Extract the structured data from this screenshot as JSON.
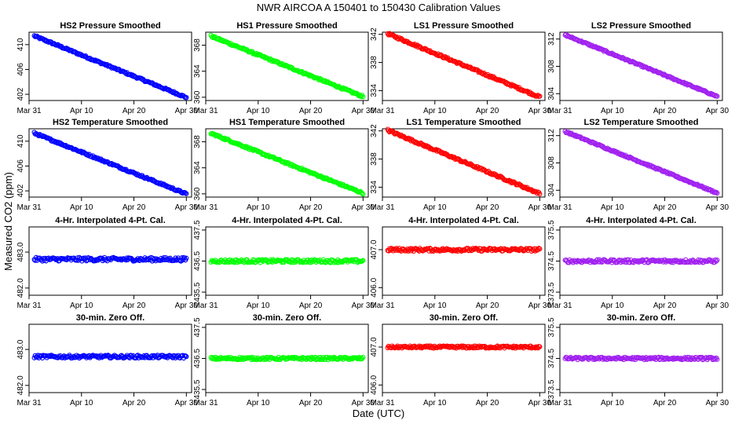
{
  "figure": {
    "title": "NWR   AIRCOA A   150401 to 150430   Calibration Values",
    "ylabel": "Measured CO2 (ppm)",
    "xlabel": "Date (UTC)"
  },
  "colors": {
    "HS2": "#0000ff",
    "HS1": "#00ff00",
    "LS1": "#ff0000",
    "LS2": "#a020f0"
  },
  "chart_data": [
    {
      "type": "scatter",
      "title": "HS2 Pressure Smoothed",
      "color_key": "HS2",
      "xlim": [
        "Mar 31",
        "May 1"
      ],
      "ylim": [
        401,
        412
      ],
      "x_ticks": [
        "Mar 31",
        "Apr 10",
        "Apr 20",
        "Apr 30"
      ],
      "y_ticks": [
        402,
        406,
        410
      ],
      "trend": {
        "x": [
          "Apr 1",
          "Apr 30"
        ],
        "y": [
          411.4,
          401.5
        ]
      },
      "noise": 0.15
    },
    {
      "type": "scatter",
      "title": "HS1 Pressure Smoothed",
      "color_key": "HS1",
      "xlim": [
        "Mar 31",
        "May 1"
      ],
      "ylim": [
        359.5,
        370
      ],
      "x_ticks": [
        "Mar 31",
        "Apr 10",
        "Apr 20",
        "Apr 30"
      ],
      "y_ticks": [
        360,
        364,
        368
      ],
      "trend": {
        "x": [
          "Apr 1",
          "Apr 30"
        ],
        "y": [
          369.4,
          360.1
        ]
      },
      "noise": 0.15
    },
    {
      "type": "scatter",
      "title": "LS1 Pressure Smoothed",
      "color_key": "LS1",
      "xlim": [
        "Mar 31",
        "May 1"
      ],
      "ylim": [
        332.6,
        342.3
      ],
      "x_ticks": [
        "Mar 31",
        "Apr 10",
        "Apr 20",
        "Apr 30"
      ],
      "y_ticks": [
        334,
        338,
        342
      ],
      "trend": {
        "x": [
          "Apr 1",
          "Apr 30"
        ],
        "y": [
          342.1,
          333.1
        ]
      },
      "noise": 0.15
    },
    {
      "type": "scatter",
      "title": "LS2 Pressure Smoothed",
      "color_key": "LS2",
      "xlim": [
        "Mar 31",
        "May 1"
      ],
      "ylim": [
        303,
        313
      ],
      "x_ticks": [
        "Mar 31",
        "Apr 10",
        "Apr 20",
        "Apr 30"
      ],
      "y_ticks": [
        304,
        308,
        312
      ],
      "trend": {
        "x": [
          "Apr 1",
          "Apr 30"
        ],
        "y": [
          312.6,
          303.6
        ]
      },
      "noise": 0.12
    },
    {
      "type": "scatter",
      "title": "HS2 Temperature Smoothed",
      "color_key": "HS2",
      "xlim": [
        "Mar 31",
        "May 1"
      ],
      "ylim": [
        401,
        412
      ],
      "x_ticks": [
        "Mar 31",
        "Apr 10",
        "Apr 20",
        "Apr 30"
      ],
      "y_ticks": [
        402,
        406,
        410
      ],
      "trend": {
        "x": [
          "Apr 1",
          "Apr 30"
        ],
        "y": [
          411.3,
          401.5
        ]
      },
      "noise": 0.15
    },
    {
      "type": "scatter",
      "title": "HS1 Temperature Smoothed",
      "color_key": "HS1",
      "xlim": [
        "Mar 31",
        "May 1"
      ],
      "ylim": [
        359.5,
        370
      ],
      "x_ticks": [
        "Mar 31",
        "Apr 10",
        "Apr 20",
        "Apr 30"
      ],
      "y_ticks": [
        360,
        364,
        368
      ],
      "trend": {
        "x": [
          "Apr 1",
          "Apr 30"
        ],
        "y": [
          369.3,
          360.1
        ]
      },
      "noise": 0.15
    },
    {
      "type": "scatter",
      "title": "LS1 Temperature Smoothed",
      "color_key": "LS1",
      "xlim": [
        "Mar 31",
        "May 1"
      ],
      "ylim": [
        332.6,
        342.3
      ],
      "x_ticks": [
        "Mar 31",
        "Apr 10",
        "Apr 20",
        "Apr 30"
      ],
      "y_ticks": [
        334,
        338,
        342
      ],
      "trend": {
        "x": [
          "Apr 1",
          "Apr 30"
        ],
        "y": [
          342.1,
          333.1
        ]
      },
      "noise": 0.15
    },
    {
      "type": "scatter",
      "title": "LS2 Temperature Smoothed",
      "color_key": "LS2",
      "xlim": [
        "Mar 31",
        "May 1"
      ],
      "ylim": [
        303,
        313
      ],
      "x_ticks": [
        "Mar 31",
        "Apr 10",
        "Apr 20",
        "Apr 30"
      ],
      "y_ticks": [
        304,
        308,
        312
      ],
      "trend": {
        "x": [
          "Apr 1",
          "Apr 30"
        ],
        "y": [
          312.6,
          303.6
        ]
      },
      "noise": 0.12
    },
    {
      "type": "scatter",
      "title": "4-Hr. Interpolated 4-Pt. Cal.",
      "color_key": "HS2",
      "xlim": [
        "Mar 31",
        "May 1"
      ],
      "ylim": [
        481.8,
        483.7
      ],
      "x_ticks": [
        "Mar 31",
        "Apr 10",
        "Apr 20",
        "Apr 30"
      ],
      "y_ticks": [
        "482.0",
        "483.0"
      ],
      "trend": {
        "x": [
          "Apr 1",
          "Apr 30"
        ],
        "y": [
          482.8,
          482.8
        ]
      },
      "noise": 0.05
    },
    {
      "type": "scatter",
      "title": "4-Hr. Interpolated 4-Pt. Cal.",
      "color_key": "HS1",
      "xlim": [
        "Mar 31",
        "May 1"
      ],
      "ylim": [
        435.4,
        437.6
      ],
      "x_ticks": [
        "Mar 31",
        "Apr 10",
        "Apr 20",
        "Apr 30"
      ],
      "y_ticks": [
        "435.5",
        "436.5",
        "437.5"
      ],
      "trend": {
        "x": [
          "Apr 1",
          "Apr 30"
        ],
        "y": [
          436.5,
          436.5
        ]
      },
      "noise": 0.05
    },
    {
      "type": "scatter",
      "title": "4-Hr. Interpolated 4-Pt. Cal.",
      "color_key": "LS1",
      "xlim": [
        "Mar 31",
        "May 1"
      ],
      "ylim": [
        405.8,
        407.6
      ],
      "x_ticks": [
        "Mar 31",
        "Apr 10",
        "Apr 20",
        "Apr 30"
      ],
      "y_ticks": [
        "406.0",
        "407.0"
      ],
      "trend": {
        "x": [
          "Apr 1",
          "Apr 30"
        ],
        "y": [
          407.0,
          407.0
        ]
      },
      "noise": 0.04
    },
    {
      "type": "scatter",
      "title": "4-Hr. Interpolated 4-Pt. Cal.",
      "color_key": "LS2",
      "xlim": [
        "Mar 31",
        "May 1"
      ],
      "ylim": [
        373.4,
        375.6
      ],
      "x_ticks": [
        "Mar 31",
        "Apr 10",
        "Apr 20",
        "Apr 30"
      ],
      "y_ticks": [
        "373.5",
        "374.5",
        "375.5"
      ],
      "trend": {
        "x": [
          "Apr 1",
          "Apr 30"
        ],
        "y": [
          374.5,
          374.5
        ]
      },
      "noise": 0.05
    },
    {
      "type": "scatter",
      "title": "30-min. Zero Off.",
      "color_key": "HS2",
      "xlim": [
        "Mar 31",
        "May 1"
      ],
      "ylim": [
        481.8,
        483.7
      ],
      "x_ticks": [
        "Mar 31",
        "Apr 10",
        "Apr 20",
        "Apr 30"
      ],
      "y_ticks": [
        "482.0",
        "483.0"
      ],
      "trend": {
        "x": [
          "Apr 1",
          "Apr 30"
        ],
        "y": [
          482.8,
          482.8
        ]
      },
      "noise": 0.04
    },
    {
      "type": "scatter",
      "title": "30-min. Zero Off.",
      "color_key": "HS1",
      "xlim": [
        "Mar 31",
        "May 1"
      ],
      "ylim": [
        435.4,
        437.6
      ],
      "x_ticks": [
        "Mar 31",
        "Apr 10",
        "Apr 20",
        "Apr 30"
      ],
      "y_ticks": [
        "435.5",
        "436.5",
        "437.5"
      ],
      "trend": {
        "x": [
          "Apr 1",
          "Apr 30"
        ],
        "y": [
          436.5,
          436.5
        ]
      },
      "noise": 0.04
    },
    {
      "type": "scatter",
      "title": "30-min. Zero Off.",
      "color_key": "LS1",
      "xlim": [
        "Mar 31",
        "May 1"
      ],
      "ylim": [
        405.8,
        407.6
      ],
      "x_ticks": [
        "Mar 31",
        "Apr 10",
        "Apr 20",
        "Apr 30"
      ],
      "y_ticks": [
        "406.0",
        "407.0"
      ],
      "trend": {
        "x": [
          "Apr 1",
          "Apr 30"
        ],
        "y": [
          407.0,
          407.0
        ]
      },
      "noise": 0.03
    },
    {
      "type": "scatter",
      "title": "30-min. Zero Off.",
      "color_key": "LS2",
      "xlim": [
        "Mar 31",
        "May 1"
      ],
      "ylim": [
        373.4,
        375.6
      ],
      "x_ticks": [
        "Mar 31",
        "Apr 10",
        "Apr 20",
        "Apr 30"
      ],
      "y_ticks": [
        "373.5",
        "374.5",
        "375.5"
      ],
      "trend": {
        "x": [
          "Apr 1",
          "Apr 30"
        ],
        "y": [
          374.5,
          374.5
        ]
      },
      "noise": 0.04
    }
  ]
}
